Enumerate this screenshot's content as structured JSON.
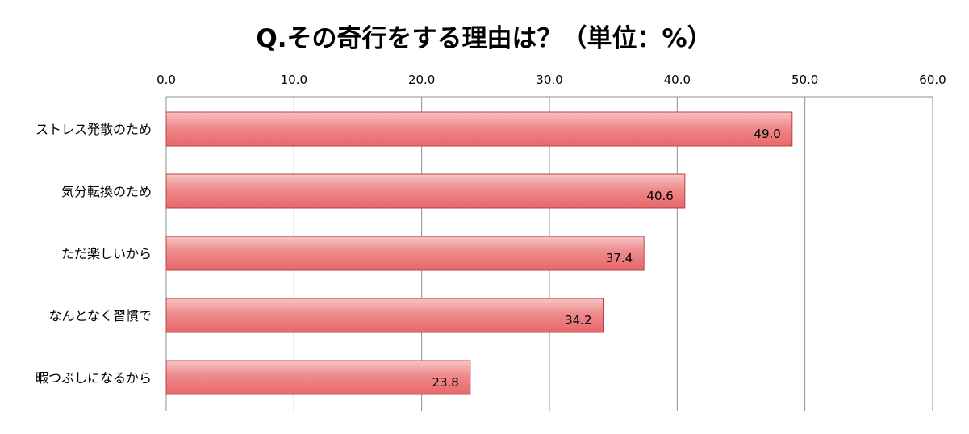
{
  "chart_data": {
    "type": "bar",
    "orientation": "horizontal",
    "title": "Q.その奇行をする理由は？（単位：%）",
    "categories": [
      "ストレス発散のため",
      "気分転換のため",
      "ただ楽しいから",
      "なんとなく習慣で",
      "暇つぶしになるから"
    ],
    "values": [
      49.0,
      40.6,
      37.4,
      34.2,
      23.8
    ],
    "value_labels": [
      "49.0",
      "40.6",
      "37.4",
      "34.2",
      "23.8"
    ],
    "xlim": [
      0,
      60
    ],
    "xticks": [
      "0.0",
      "10.0",
      "20.0",
      "30.0",
      "40.0",
      "50.0",
      "60.0"
    ],
    "x_axis_position": "top",
    "grid": "vertical",
    "bar_color": "#e8676a",
    "bar_highlight_color": "#f7c3c3",
    "bar_border_color": "#b54447"
  }
}
